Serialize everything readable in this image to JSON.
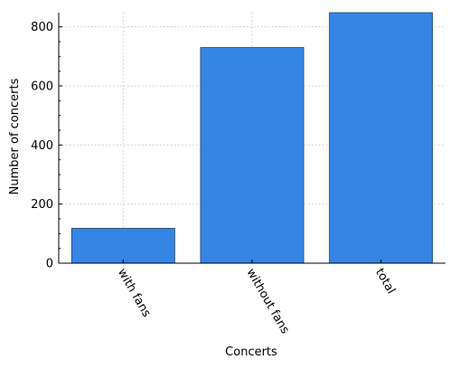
{
  "chart_data": {
    "type": "bar",
    "categories": [
      "with fans",
      "without fans",
      "total"
    ],
    "values": [
      118,
      730,
      848
    ],
    "title": "",
    "xlabel": "Concerts",
    "ylabel": "Number of concerts",
    "ylim": [
      0,
      848
    ],
    "yticks": [
      0,
      200,
      400,
      600,
      800
    ],
    "grid": true,
    "bar_color": "#3585e5",
    "bar_edge_color": "#1f3f66",
    "grid_color": "#c8c8c8"
  }
}
